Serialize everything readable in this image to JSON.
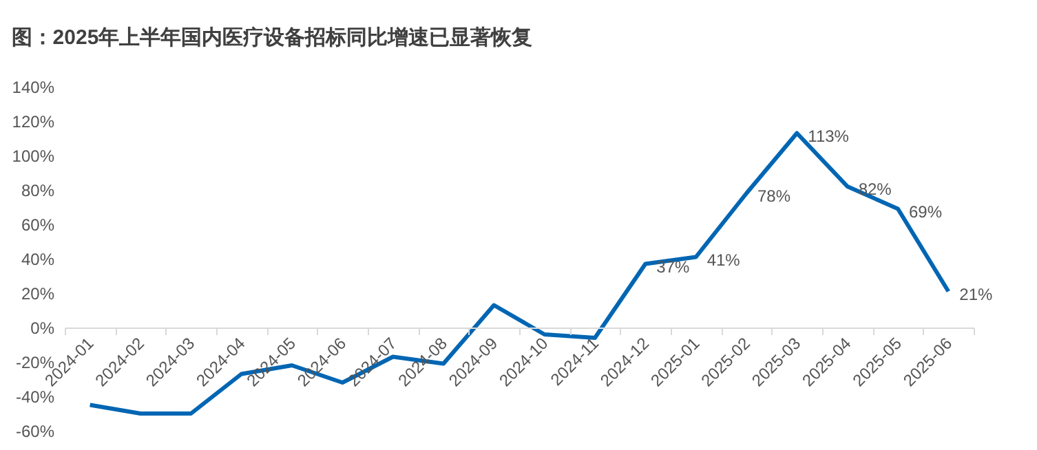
{
  "chart_data": {
    "type": "line",
    "title": "图：2025年上半年国内医疗设备招标同比增速已显著恢复",
    "categories": [
      "2024-01",
      "2024-02",
      "2024-03",
      "2024-04",
      "2024-05",
      "2024-06",
      "2024-07",
      "2024-08",
      "2024-09",
      "2024-10",
      "2024-11",
      "2024-12",
      "2025-01",
      "2025-02",
      "2025-03",
      "2025-04",
      "2025-05",
      "2025-06"
    ],
    "series": [
      {
        "color": "#0066b3",
        "values": [
          -45,
          -50,
          -50,
          -27,
          -22,
          -32,
          -17,
          -21,
          13,
          -4,
          -6,
          37,
          41,
          78,
          113,
          82,
          69,
          21
        ],
        "value_labels": [
          null,
          null,
          null,
          null,
          null,
          null,
          null,
          null,
          null,
          null,
          null,
          "37%",
          "41%",
          "78%",
          "113%",
          "82%",
          "69%",
          "21%"
        ]
      }
    ],
    "ylim": [
      -60,
      140
    ],
    "yticks": [
      {
        "value": -60,
        "label": "-60%"
      },
      {
        "value": -40,
        "label": "-40%"
      },
      {
        "value": -20,
        "label": "-20%"
      },
      {
        "value": 0,
        "label": "0%"
      },
      {
        "value": 20,
        "label": "20%"
      },
      {
        "value": 40,
        "label": "40%"
      },
      {
        "value": 60,
        "label": "60%"
      },
      {
        "value": 80,
        "label": "80%"
      },
      {
        "value": 100,
        "label": "100%"
      },
      {
        "value": 120,
        "label": "120%"
      },
      {
        "value": 140,
        "label": "140%"
      }
    ],
    "grid": false,
    "legend": false,
    "marker": "none",
    "line_style": "solid"
  }
}
